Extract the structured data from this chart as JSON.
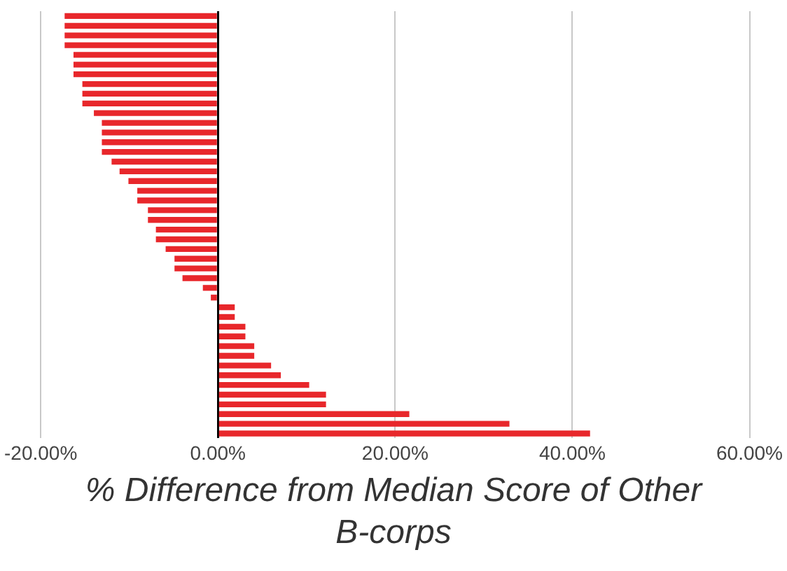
{
  "chart_data": {
    "type": "bar",
    "orientation": "horizontal",
    "xlabel": "% Difference from Median Score of Other B-corps",
    "categories": [
      null,
      null,
      null,
      null,
      null,
      null,
      null,
      null,
      null,
      null,
      null,
      null,
      null,
      null,
      null,
      null,
      null,
      null,
      null,
      null,
      null,
      null,
      null,
      null,
      null,
      null,
      null,
      null,
      null,
      null,
      null,
      null,
      null,
      null,
      null,
      null,
      null,
      null,
      null,
      null,
      null,
      null,
      null,
      null
    ],
    "values": [
      -17.3,
      -17.3,
      -17.3,
      -17.3,
      -16.3,
      -16.3,
      -16.3,
      -15.3,
      -15.3,
      -15.3,
      -14,
      -13.1,
      -13.1,
      -13.1,
      -13.1,
      -12,
      -11.1,
      -10.1,
      -9.1,
      -9.1,
      -7.9,
      -7.9,
      -7,
      -7,
      -5.9,
      -4.9,
      -4.9,
      -4,
      -1.7,
      -0.8,
      1.9,
      1.9,
      3.1,
      3.1,
      4.1,
      4.1,
      6,
      7.1,
      10.3,
      12.2,
      12.2,
      21.6,
      32.9,
      42
    ],
    "color": "#e8272b",
    "xlim": [
      -20,
      60
    ],
    "xticks": [
      {
        "value": -20,
        "label": "-20.00%"
      },
      {
        "value": 0,
        "label": "0.00%"
      },
      {
        "value": 20,
        "label": "20.00%"
      },
      {
        "value": 40,
        "label": "40.00%"
      },
      {
        "value": 60,
        "label": "60.00%"
      }
    ],
    "grid": "x",
    "tick_labels": "x",
    "legend": false
  }
}
